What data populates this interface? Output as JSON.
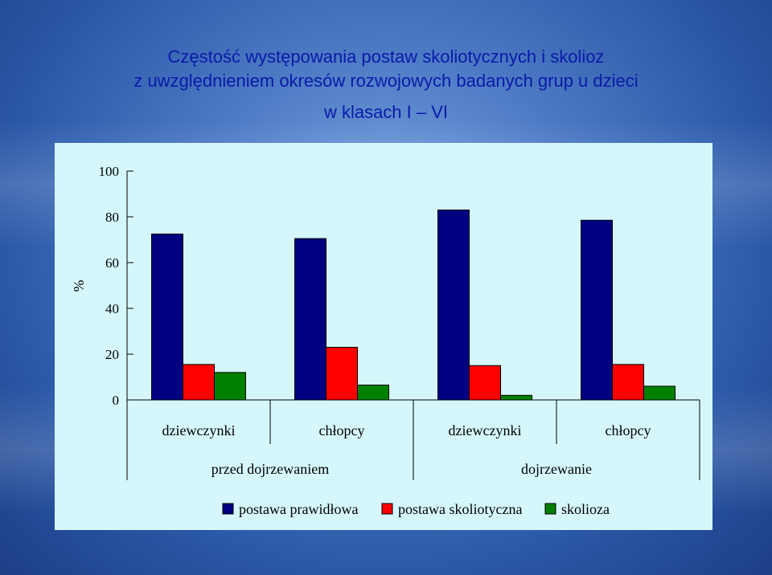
{
  "title": {
    "line1": "Częstość występowania postaw skoliotycznych i skolioz",
    "line2": "z uwzględnieniem okresów rozwojowych badanych grup u dzieci",
    "line3": "w klasach I – VI"
  },
  "chart_data": {
    "type": "bar",
    "title": "Częstość występowania postaw skoliotycznych i skolioz z uwzględnieniem okresów rozwojowych badanych grup u dzieci w klasach I – VI",
    "ylabel": "%",
    "ylim": [
      0,
      100
    ],
    "yticks": [
      0,
      20,
      40,
      60,
      80,
      100
    ],
    "categories": [
      "dziewczynki",
      "chłopcy",
      "dziewczynki",
      "chłopcy"
    ],
    "groups": [
      {
        "label": "przed dojrzewaniem",
        "categories": [
          0,
          1
        ]
      },
      {
        "label": "dojrzewanie",
        "categories": [
          2,
          3
        ]
      }
    ],
    "series": [
      {
        "name": "postawa prawidłowa",
        "color": "#000080",
        "values": [
          72.5,
          70.5,
          83,
          78.5
        ]
      },
      {
        "name": "postawa skoliotyczna",
        "color": "#ff0000",
        "values": [
          15.5,
          23,
          15,
          15.5
        ]
      },
      {
        "name": "skolioza",
        "color": "#008000",
        "values": [
          12,
          6.5,
          2,
          6
        ]
      }
    ],
    "legend_position": "bottom",
    "grid": false
  }
}
